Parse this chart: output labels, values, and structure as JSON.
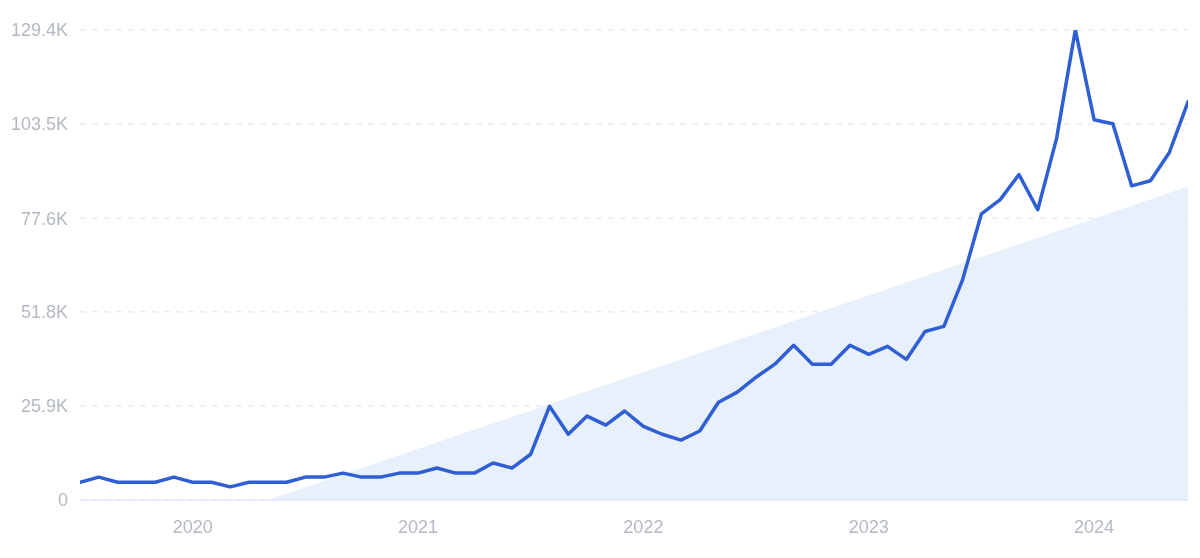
{
  "chart_data": {
    "type": "line",
    "x": [
      "2019-07",
      "2019-08",
      "2019-09",
      "2019-10",
      "2019-11",
      "2019-12",
      "2020-01",
      "2020-02",
      "2020-03",
      "2020-04",
      "2020-05",
      "2020-06",
      "2020-07",
      "2020-08",
      "2020-09",
      "2020-10",
      "2020-11",
      "2020-12",
      "2021-01",
      "2021-02",
      "2021-03",
      "2021-04",
      "2021-05",
      "2021-06",
      "2021-07",
      "2021-08",
      "2021-09",
      "2021-10",
      "2021-11",
      "2021-12",
      "2022-01",
      "2022-02",
      "2022-03",
      "2022-04",
      "2022-05",
      "2022-06",
      "2022-07",
      "2022-08",
      "2022-09",
      "2022-10",
      "2022-11",
      "2022-12",
      "2023-01",
      "2023-02",
      "2023-03",
      "2023-04",
      "2023-05",
      "2023-06",
      "2023-07",
      "2023-08",
      "2023-09",
      "2023-10",
      "2023-11",
      "2023-12",
      "2024-01",
      "2024-02",
      "2024-03",
      "2024-04",
      "2024-05",
      "2024-06"
    ],
    "series": [
      {
        "type": "area",
        "color": "#e4edfb",
        "x": [
          "2020-05",
          "2024-06"
        ],
        "values": [
          0,
          86300
        ]
      },
      {
        "color": "#2f5fd3",
        "values": [
          4900,
          6300,
          4900,
          4900,
          4900,
          6300,
          4900,
          4900,
          3600,
          4900,
          4900,
          4900,
          6300,
          6300,
          7400,
          6300,
          6300,
          7400,
          7400,
          8800,
          7400,
          7400,
          10200,
          8800,
          12600,
          25800,
          18100,
          23100,
          20600,
          24500,
          20300,
          18100,
          16500,
          19000,
          26900,
          29700,
          33800,
          37400,
          42600,
          37400,
          37400,
          42600,
          40100,
          42300,
          38700,
          46400,
          47800,
          60700,
          78800,
          82700,
          89600,
          79900,
          99500,
          129400,
          104700,
          103600,
          86500,
          87900,
          95600,
          109600
        ]
      }
    ],
    "xlim": [
      "2019-07",
      "2024-06"
    ],
    "xticks": [
      "2020",
      "2021",
      "2022",
      "2023",
      "2024"
    ],
    "ylim": [
      0,
      129400
    ],
    "yticks": [
      {
        "value": 0,
        "label": "0"
      },
      {
        "value": 25900,
        "label": "25.9K"
      },
      {
        "value": 51800,
        "label": "51.8K"
      },
      {
        "value": 77600,
        "label": "77.6K"
      },
      {
        "value": 103500,
        "label": "103.5K"
      },
      {
        "value": 129400,
        "label": "129.4K"
      }
    ],
    "grid": "y",
    "marker": "none",
    "line_style": "solid"
  }
}
